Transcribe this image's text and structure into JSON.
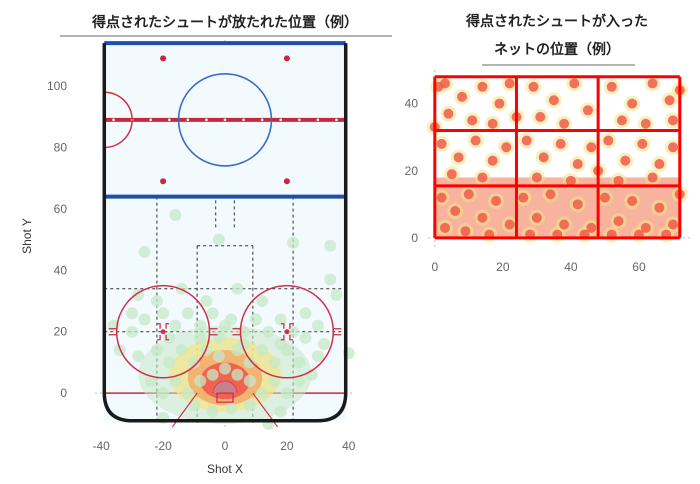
{
  "chart_data": [
    {
      "type": "scatter",
      "title": "得点されたシュートが放たれた位置（例）",
      "xlabel": "Shot X",
      "ylabel": "Shot Y",
      "xlim": [
        -42,
        42
      ],
      "ylim": [
        -12,
        115
      ],
      "x_ticks": [
        -40,
        -20,
        0,
        20,
        40
      ],
      "y_ticks": [
        0,
        20,
        40,
        60,
        80,
        100
      ],
      "rink": {
        "boards_x": 39,
        "goal_line_y": 0,
        "blue_line_y": 64,
        "red_line_y": 89,
        "far_blue_line_y": 114,
        "center_circle": {
          "x": 0,
          "y": 89,
          "r": 15
        },
        "faceoff_circles": [
          {
            "x": -20,
            "y": 20,
            "r": 15
          },
          {
            "x": 20,
            "y": 20,
            "r": 15
          }
        ],
        "neutral_dots": [
          {
            "x": -20,
            "y": 69
          },
          {
            "x": 20,
            "y": 69
          },
          {
            "x": -20,
            "y": 109
          },
          {
            "x": 20,
            "y": 109
          }
        ]
      },
      "density_core": {
        "x": 0,
        "y": 4
      },
      "series": [
        {
          "values": [
            {
              "x": -16,
              "y": 58
            },
            {
              "x": -26,
              "y": 46
            },
            {
              "x": -2,
              "y": 50
            },
            {
              "x": 22,
              "y": 49
            },
            {
              "x": 34,
              "y": 48
            },
            {
              "x": 34,
              "y": 37
            },
            {
              "x": -28,
              "y": 32
            },
            {
              "x": -22,
              "y": 30
            },
            {
              "x": -36,
              "y": 22
            },
            {
              "x": -30,
              "y": 20
            },
            {
              "x": -26,
              "y": 24
            },
            {
              "x": -20,
              "y": 26
            },
            {
              "x": -16,
              "y": 22
            },
            {
              "x": -12,
              "y": 26
            },
            {
              "x": -8,
              "y": 22
            },
            {
              "x": -4,
              "y": 26
            },
            {
              "x": 2,
              "y": 24
            },
            {
              "x": 6,
              "y": 20
            },
            {
              "x": 10,
              "y": 24
            },
            {
              "x": 14,
              "y": 20
            },
            {
              "x": 18,
              "y": 24
            },
            {
              "x": 22,
              "y": 20
            },
            {
              "x": 26,
              "y": 18
            },
            {
              "x": 30,
              "y": 22
            },
            {
              "x": 36,
              "y": 32
            },
            {
              "x": -34,
              "y": 14
            },
            {
              "x": -28,
              "y": 12
            },
            {
              "x": -22,
              "y": 14
            },
            {
              "x": -18,
              "y": 10
            },
            {
              "x": -14,
              "y": 14
            },
            {
              "x": -10,
              "y": 10
            },
            {
              "x": -6,
              "y": 14
            },
            {
              "x": -2,
              "y": 12
            },
            {
              "x": 4,
              "y": 14
            },
            {
              "x": 8,
              "y": 10
            },
            {
              "x": 12,
              "y": 14
            },
            {
              "x": 16,
              "y": 10
            },
            {
              "x": 20,
              "y": 14
            },
            {
              "x": 24,
              "y": 10
            },
            {
              "x": 30,
              "y": 12
            },
            {
              "x": 40,
              "y": 13
            },
            {
              "x": -24,
              "y": 4
            },
            {
              "x": -20,
              "y": 0
            },
            {
              "x": -16,
              "y": 4
            },
            {
              "x": -12,
              "y": 0
            },
            {
              "x": -8,
              "y": 4
            },
            {
              "x": -4,
              "y": 6
            },
            {
              "x": 0,
              "y": 8
            },
            {
              "x": 4,
              "y": 6
            },
            {
              "x": 8,
              "y": 4
            },
            {
              "x": 12,
              "y": 0
            },
            {
              "x": 16,
              "y": 4
            },
            {
              "x": 20,
              "y": 0
            },
            {
              "x": 24,
              "y": 4
            },
            {
              "x": 28,
              "y": 6
            },
            {
              "x": -10,
              "y": -4
            },
            {
              "x": -4,
              "y": -6
            },
            {
              "x": 2,
              "y": -5
            },
            {
              "x": 8,
              "y": -4
            },
            {
              "x": 18,
              "y": -6
            },
            {
              "x": -20,
              "y": -8
            },
            {
              "x": 14,
              "y": -10
            },
            {
              "x": -6,
              "y": 30
            },
            {
              "x": 4,
              "y": 34
            },
            {
              "x": -14,
              "y": 34
            },
            {
              "x": 12,
              "y": 30
            },
            {
              "x": -2,
              "y": 18
            },
            {
              "x": 6,
              "y": 16
            },
            {
              "x": -8,
              "y": 18
            },
            {
              "x": 0,
              "y": 22
            },
            {
              "x": -18,
              "y": 18
            },
            {
              "x": 18,
              "y": 16
            },
            {
              "x": 26,
              "y": 26
            },
            {
              "x": -30,
              "y": 26
            },
            {
              "x": 32,
              "y": 16
            }
          ]
        }
      ]
    },
    {
      "type": "scatter",
      "title": "得点されたシュートが入ったネットの位置（例）",
      "title_lines": [
        "得点されたシュートが入った",
        "ネットの位置（例）"
      ],
      "xlim": [
        -2,
        75
      ],
      "ylim": [
        -3,
        50
      ],
      "x_ticks": [
        0,
        20,
        40,
        60
      ],
      "y_ticks": [
        0,
        20,
        40
      ],
      "net_grid": {
        "x": [
          0,
          24,
          48,
          72
        ],
        "y": [
          0,
          15.5,
          32,
          48
        ]
      },
      "series": [
        {
          "values": [
            {
              "x": 3,
              "y": 46
            },
            {
              "x": 8,
              "y": 42
            },
            {
              "x": 14,
              "y": 45
            },
            {
              "x": 19,
              "y": 40
            },
            {
              "x": 22,
              "y": 46
            },
            {
              "x": 4,
              "y": 37
            },
            {
              "x": 11,
              "y": 35
            },
            {
              "x": 17,
              "y": 34
            },
            {
              "x": 29,
              "y": 45
            },
            {
              "x": 35,
              "y": 41
            },
            {
              "x": 41,
              "y": 46
            },
            {
              "x": 45,
              "y": 38
            },
            {
              "x": 31,
              "y": 36
            },
            {
              "x": 38,
              "y": 34
            },
            {
              "x": 52,
              "y": 45
            },
            {
              "x": 58,
              "y": 40
            },
            {
              "x": 64,
              "y": 46
            },
            {
              "x": 69,
              "y": 41
            },
            {
              "x": 55,
              "y": 35
            },
            {
              "x": 62,
              "y": 34
            },
            {
              "x": 70,
              "y": 35
            },
            {
              "x": 2,
              "y": 28
            },
            {
              "x": 7,
              "y": 24
            },
            {
              "x": 12,
              "y": 29
            },
            {
              "x": 17,
              "y": 23
            },
            {
              "x": 21,
              "y": 27
            },
            {
              "x": 5,
              "y": 19
            },
            {
              "x": 14,
              "y": 18
            },
            {
              "x": 27,
              "y": 29
            },
            {
              "x": 32,
              "y": 24
            },
            {
              "x": 37,
              "y": 28
            },
            {
              "x": 42,
              "y": 22
            },
            {
              "x": 46,
              "y": 27
            },
            {
              "x": 30,
              "y": 18
            },
            {
              "x": 40,
              "y": 17
            },
            {
              "x": 51,
              "y": 29
            },
            {
              "x": 56,
              "y": 23
            },
            {
              "x": 61,
              "y": 28
            },
            {
              "x": 66,
              "y": 22
            },
            {
              "x": 70,
              "y": 27
            },
            {
              "x": 54,
              "y": 17
            },
            {
              "x": 64,
              "y": 18
            },
            {
              "x": 2,
              "y": 12
            },
            {
              "x": 6,
              "y": 8
            },
            {
              "x": 10,
              "y": 13
            },
            {
              "x": 14,
              "y": 6
            },
            {
              "x": 18,
              "y": 11
            },
            {
              "x": 22,
              "y": 4
            },
            {
              "x": 3,
              "y": 3
            },
            {
              "x": 9,
              "y": 2
            },
            {
              "x": 16,
              "y": 1
            },
            {
              "x": 26,
              "y": 12
            },
            {
              "x": 30,
              "y": 6
            },
            {
              "x": 34,
              "y": 13
            },
            {
              "x": 38,
              "y": 4
            },
            {
              "x": 42,
              "y": 10
            },
            {
              "x": 46,
              "y": 3
            },
            {
              "x": 28,
              "y": 1
            },
            {
              "x": 36,
              "y": 1
            },
            {
              "x": 44,
              "y": 1
            },
            {
              "x": 50,
              "y": 12
            },
            {
              "x": 54,
              "y": 5
            },
            {
              "x": 58,
              "y": 11
            },
            {
              "x": 62,
              "y": 3
            },
            {
              "x": 66,
              "y": 9
            },
            {
              "x": 70,
              "y": 4
            },
            {
              "x": 52,
              "y": 1
            },
            {
              "x": 60,
              "y": 1
            },
            {
              "x": 68,
              "y": 1
            },
            {
              "x": 72,
              "y": 13
            },
            {
              "x": 0,
              "y": 33
            },
            {
              "x": 72,
              "y": 44
            },
            {
              "x": 24,
              "y": 36
            },
            {
              "x": 48,
              "y": 20
            },
            {
              "x": 1,
              "y": 45
            }
          ]
        }
      ]
    }
  ],
  "colors": {
    "rink_fill": "#f3fafd",
    "boards": "#1a1a1a",
    "red_line": "#c8283c",
    "blue_line": "#1f4fa8",
    "center_circle": "#3a6bc8",
    "faceoff": "#d0304a",
    "density_low": "#c6e8c8",
    "density_mid": "#f4e48a",
    "density_high": "#f05a4a",
    "net_grid": "#ff0000"
  }
}
